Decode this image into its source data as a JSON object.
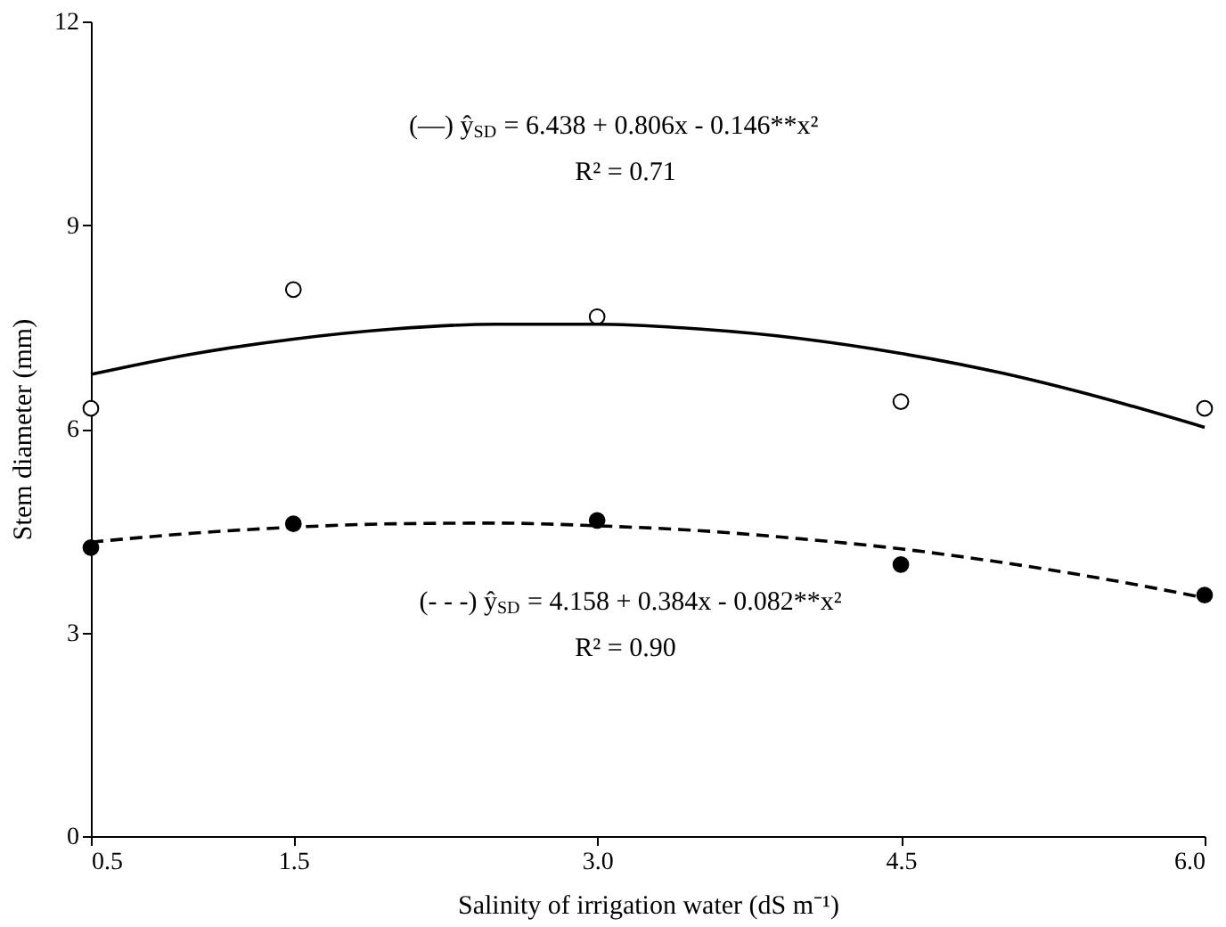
{
  "chart_data": {
    "type": "scatter",
    "xlabel": "Salinity of irrigation water (dS m⁻¹)",
    "ylabel": "Stem diameter (mm)",
    "xlim": [
      0.5,
      6.0
    ],
    "xticks": [
      {
        "value": 0.5,
        "label": "0.5"
      },
      {
        "value": 1.5,
        "label": "1.5"
      },
      {
        "value": 3.0,
        "label": "3.0"
      },
      {
        "value": 4.5,
        "label": "4.5"
      },
      {
        "value": 6.0,
        "label": "6.0"
      }
    ],
    "ylim": [
      0,
      12
    ],
    "yticks": [
      0,
      3,
      6,
      9,
      12
    ],
    "grid": false,
    "marker": "circle",
    "x": [
      0.5,
      1.5,
      3.0,
      4.5,
      6.0
    ],
    "series": [
      {
        "color": "#ffffff",
        "values": [
          6.3,
          8.05,
          7.65,
          6.4,
          6.3
        ]
      },
      {
        "color": "#000000",
        "values": [
          4.25,
          4.6,
          4.65,
          4.0,
          3.55
        ]
      },
      {
        "type": "line",
        "marker": "none",
        "color": "#000000",
        "line_style": "solid",
        "x": [
          0.5,
          1,
          1.5,
          2,
          2.5,
          3,
          3.5,
          4,
          4.5,
          5,
          5.5,
          6
        ],
        "values": [
          6.8,
          7.1,
          7.32,
          7.47,
          7.54,
          7.54,
          7.47,
          7.33,
          7.11,
          6.82,
          6.45,
          6.02
        ]
      },
      {
        "type": "line",
        "marker": "none",
        "color": "#000000",
        "line_style": "dashed",
        "x": [
          0.5,
          1,
          1.5,
          2,
          2.5,
          3,
          3.5,
          4,
          4.5,
          5,
          5.5,
          6
        ],
        "values": [
          4.33,
          4.46,
          4.55,
          4.6,
          4.61,
          4.57,
          4.5,
          4.38,
          4.23,
          4.03,
          3.79,
          3.51
        ]
      }
    ],
    "annotations": [
      "(—) ŷ$_{SD}$ = 6.438 + 0.806x - 0.146**x²",
      "R² = 0.71",
      "(- - -) ŷ$_{SD}$ = 4.158 + 0.384x - 0.082**x²",
      "R² = 0.90"
    ]
  }
}
